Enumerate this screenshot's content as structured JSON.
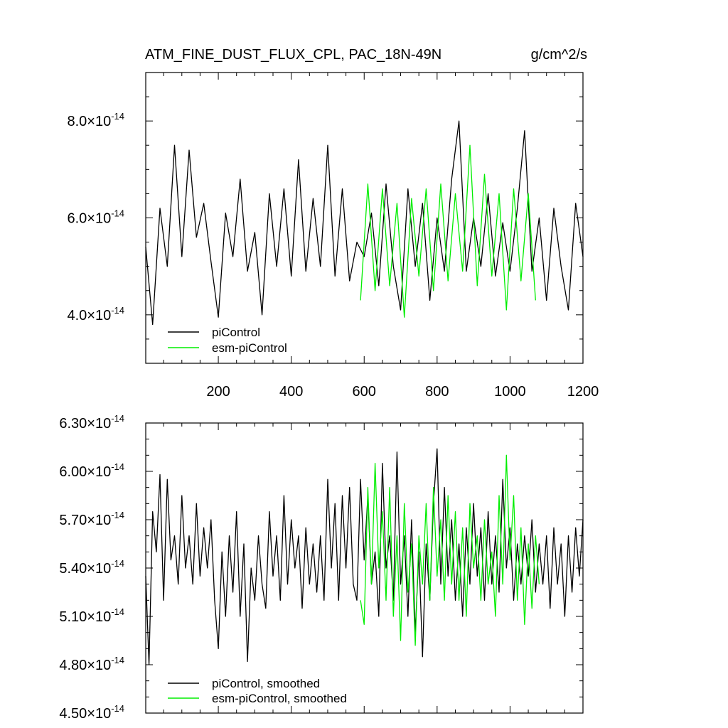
{
  "header": {
    "title": "ATM_FINE_DUST_FLUX_CPL, PAC_18N-49N",
    "units": "g/cm^2/s"
  },
  "colors": {
    "piControl": "#000000",
    "esm_piControl": "#00ee00",
    "axis": "#000000"
  },
  "chart_data": [
    {
      "type": "line",
      "title": "ATM_FINE_DUST_FLUX_CPL, PAC_18N-49N",
      "units": "g/cm^2/s",
      "xlim": [
        1,
        1200
      ],
      "ylim": [
        3e-14,
        9e-14
      ],
      "x_ticks": [
        200,
        400,
        600,
        800,
        1000,
        1200
      ],
      "x_tick_labels": [
        "200",
        "400",
        "600",
        "800",
        "1000",
        "1200"
      ],
      "y_ticks": [
        4e-14,
        6e-14,
        8e-14
      ],
      "y_tick_labels": [
        {
          "mant": "4.0",
          "exp": "-14"
        },
        {
          "mant": "6.0",
          "exp": "-14"
        },
        {
          "mant": "8.0",
          "exp": "-14"
        }
      ],
      "legend_position": "bottom-left",
      "series": [
        {
          "name": "piControl",
          "color": "#000000",
          "x": [
            1,
            20,
            40,
            60,
            80,
            100,
            120,
            140,
            160,
            180,
            200,
            220,
            240,
            260,
            280,
            300,
            320,
            340,
            360,
            380,
            400,
            420,
            440,
            460,
            480,
            500,
            520,
            540,
            560,
            580,
            600,
            620,
            640,
            660,
            680,
            700,
            720,
            740,
            760,
            780,
            800,
            820,
            840,
            860,
            880,
            900,
            920,
            940,
            960,
            980,
            1000,
            1020,
            1040,
            1060,
            1080,
            1100,
            1120,
            1140,
            1160,
            1180,
            1200
          ],
          "values": [
            5.4e-14,
            3.8e-14,
            6.2e-14,
            5e-14,
            7.5e-14,
            5.2e-14,
            7.4e-14,
            5.6e-14,
            6.3e-14,
            5.1e-14,
            3.95e-14,
            6.1e-14,
            5.2e-14,
            6.8e-14,
            4.9e-14,
            5.7e-14,
            4e-14,
            6.5e-14,
            5e-14,
            6.6e-14,
            4.8e-14,
            7.2e-14,
            4.9e-14,
            6.4e-14,
            5e-14,
            7.5e-14,
            4.8e-14,
            6.6e-14,
            4.7e-14,
            5.5e-14,
            5.2e-14,
            6.1e-14,
            4.6e-14,
            6.7e-14,
            5e-14,
            4.1e-14,
            6.6e-14,
            5e-14,
            6.3e-14,
            4.3e-14,
            6e-14,
            4.9e-14,
            6.8e-14,
            8e-14,
            4.9e-14,
            6e-14,
            5e-14,
            6.5e-14,
            4.8e-14,
            5.9e-14,
            4.9e-14,
            6.2e-14,
            7.8e-14,
            4.9e-14,
            6e-14,
            4.3e-14,
            6.2e-14,
            5e-14,
            4.1e-14,
            6.3e-14,
            5.2e-14
          ]
        },
        {
          "name": "esm-piControl",
          "color": "#00ee00",
          "x": [
            590,
            610,
            630,
            650,
            670,
            690,
            710,
            730,
            750,
            770,
            790,
            810,
            830,
            850,
            870,
            890,
            910,
            930,
            950,
            970,
            990,
            1010,
            1030,
            1050,
            1070
          ],
          "values": [
            4.3e-14,
            6.7e-14,
            4.5e-14,
            6.6e-14,
            4.6e-14,
            6.3e-14,
            3.95e-14,
            6.4e-14,
            4.8e-14,
            6.6e-14,
            4.5e-14,
            6.7e-14,
            4.7e-14,
            6.5e-14,
            4.9e-14,
            7.5e-14,
            4.6e-14,
            6.9e-14,
            4.8e-14,
            6.5e-14,
            4.1e-14,
            6.6e-14,
            4.7e-14,
            6.5e-14,
            4.3e-14
          ]
        }
      ]
    },
    {
      "type": "line",
      "xlim": [
        1,
        1200
      ],
      "ylim": [
        4.5e-14,
        6.3e-14
      ],
      "x_ticks": [
        200,
        400,
        600,
        800,
        1000,
        1200
      ],
      "y_ticks": [
        4.5e-14,
        4.8e-14,
        5.1e-14,
        5.4e-14,
        5.7e-14,
        6e-14,
        6.3e-14
      ],
      "y_tick_labels": [
        {
          "mant": "4.50",
          "exp": "-14"
        },
        {
          "mant": "4.80",
          "exp": "-14"
        },
        {
          "mant": "5.10",
          "exp": "-14"
        },
        {
          "mant": "5.40",
          "exp": "-14"
        },
        {
          "mant": "5.70",
          "exp": "-14"
        },
        {
          "mant": "6.00",
          "exp": "-14"
        },
        {
          "mant": "6.30",
          "exp": "-14"
        }
      ],
      "legend_position": "bottom-left",
      "series": [
        {
          "name": "piControl, smoothed",
          "color": "#000000",
          "x": [
            1,
            10,
            20,
            30,
            40,
            50,
            60,
            70,
            80,
            90,
            100,
            110,
            120,
            130,
            140,
            150,
            160,
            170,
            180,
            190,
            200,
            210,
            220,
            230,
            240,
            250,
            260,
            270,
            280,
            290,
            300,
            310,
            320,
            330,
            340,
            350,
            360,
            370,
            380,
            390,
            400,
            410,
            420,
            430,
            440,
            450,
            460,
            470,
            480,
            490,
            500,
            510,
            520,
            530,
            540,
            550,
            560,
            570,
            580,
            590,
            600,
            610,
            620,
            630,
            640,
            650,
            660,
            670,
            680,
            690,
            700,
            710,
            720,
            730,
            740,
            750,
            760,
            770,
            780,
            790,
            800,
            810,
            820,
            830,
            840,
            850,
            860,
            870,
            880,
            890,
            900,
            910,
            920,
            930,
            940,
            950,
            960,
            970,
            980,
            990,
            1000,
            1010,
            1020,
            1030,
            1040,
            1050,
            1060,
            1070,
            1080,
            1090,
            1100,
            1110,
            1120,
            1130,
            1140,
            1150,
            1160,
            1170,
            1180,
            1190,
            1200
          ],
          "values": [
            5.35e-14,
            4.8e-14,
            5.75e-14,
            5.5e-14,
            5.98e-14,
            5.2e-14,
            5.95e-14,
            5.45e-14,
            5.6e-14,
            5.3e-14,
            5.85e-14,
            5.4e-14,
            5.6e-14,
            5.3e-14,
            5.8e-14,
            5.35e-14,
            5.65e-14,
            5.4e-14,
            5.7e-14,
            5.2e-14,
            4.9e-14,
            5.5e-14,
            5.1e-14,
            5.6e-14,
            5.25e-14,
            5.75e-14,
            5.1e-14,
            5.55e-14,
            4.82e-14,
            5.4e-14,
            5.2e-14,
            5.6e-14,
            5.3e-14,
            5.15e-14,
            5.75e-14,
            5.35e-14,
            5.6e-14,
            5.2e-14,
            5.85e-14,
            5.3e-14,
            5.7e-14,
            5.4e-14,
            5.6e-14,
            5.15e-14,
            5.65e-14,
            5.3e-14,
            5.55e-14,
            5.25e-14,
            5.6e-14,
            5.2e-14,
            5.95e-14,
            5.4e-14,
            5.8e-14,
            5.2e-14,
            5.85e-14,
            5.4e-14,
            5.9e-14,
            5.3e-14,
            5.2e-14,
            5.95e-14,
            5.45e-14,
            5.85e-14,
            5.3e-14,
            5.5e-14,
            5.1e-14,
            6.05e-14,
            5.4e-14,
            5.6e-14,
            5.2e-14,
            6.12e-14,
            5.3e-14,
            5.6e-14,
            5.1e-14,
            5.7e-14,
            5e-14,
            5.5e-14,
            4.85e-14,
            5.55e-14,
            5.2e-14,
            5.8e-14,
            6.14e-14,
            5.3e-14,
            5.9e-14,
            5.35e-14,
            5.7e-14,
            5.2e-14,
            5.55e-14,
            5.1e-14,
            5.65e-14,
            5.3e-14,
            5.8e-14,
            5.35e-14,
            5.65e-14,
            5.2e-14,
            5.75e-14,
            5.3e-14,
            5.6e-14,
            5.25e-14,
            5.95e-14,
            5.4e-14,
            5.65e-14,
            5.2e-14,
            5.55e-14,
            5.3e-14,
            5.6e-14,
            5.35e-14,
            5.7e-14,
            5.25e-14,
            5.55e-14,
            5.3e-14,
            5.6e-14,
            5.15e-14,
            5.65e-14,
            5.3e-14,
            5.55e-14,
            5.1e-14,
            5.6e-14,
            5.25e-14,
            5.65e-14,
            5.35e-14,
            5.7e-14
          ]
        },
        {
          "name": "esm-piControl, smoothed",
          "color": "#00ee00",
          "x": [
            590,
            600,
            610,
            620,
            630,
            640,
            650,
            660,
            670,
            680,
            690,
            700,
            710,
            720,
            730,
            740,
            750,
            760,
            770,
            780,
            790,
            800,
            810,
            820,
            830,
            840,
            850,
            860,
            870,
            880,
            890,
            900,
            910,
            920,
            930,
            940,
            950,
            960,
            970,
            980,
            990,
            1000,
            1010,
            1020,
            1030,
            1040,
            1050,
            1060,
            1070,
            1080
          ],
          "values": [
            5.2e-14,
            5.05e-14,
            5.9e-14,
            5.3e-14,
            6.05e-14,
            5.4e-14,
            5.75e-14,
            5.2e-14,
            5.9e-14,
            5.1e-14,
            5.6e-14,
            4.95e-14,
            5.8e-14,
            5.25e-14,
            5.55e-14,
            4.92e-14,
            5.6e-14,
            5.3e-14,
            5.8e-14,
            5.2e-14,
            5.9e-14,
            5.35e-14,
            5.7e-14,
            5.2e-14,
            5.85e-14,
            5.3e-14,
            5.75e-14,
            5.2e-14,
            5.65e-14,
            5.1e-14,
            5.8e-14,
            5.4e-14,
            5.6e-14,
            5.2e-14,
            5.7e-14,
            5.3e-14,
            5.5e-14,
            5.1e-14,
            5.85e-14,
            5.3e-14,
            6.1e-14,
            5.45e-14,
            5.85e-14,
            5.2e-14,
            5.65e-14,
            5.05e-14,
            5.55e-14,
            5.15e-14,
            5.6e-14,
            5.3e-14
          ]
        }
      ]
    }
  ]
}
